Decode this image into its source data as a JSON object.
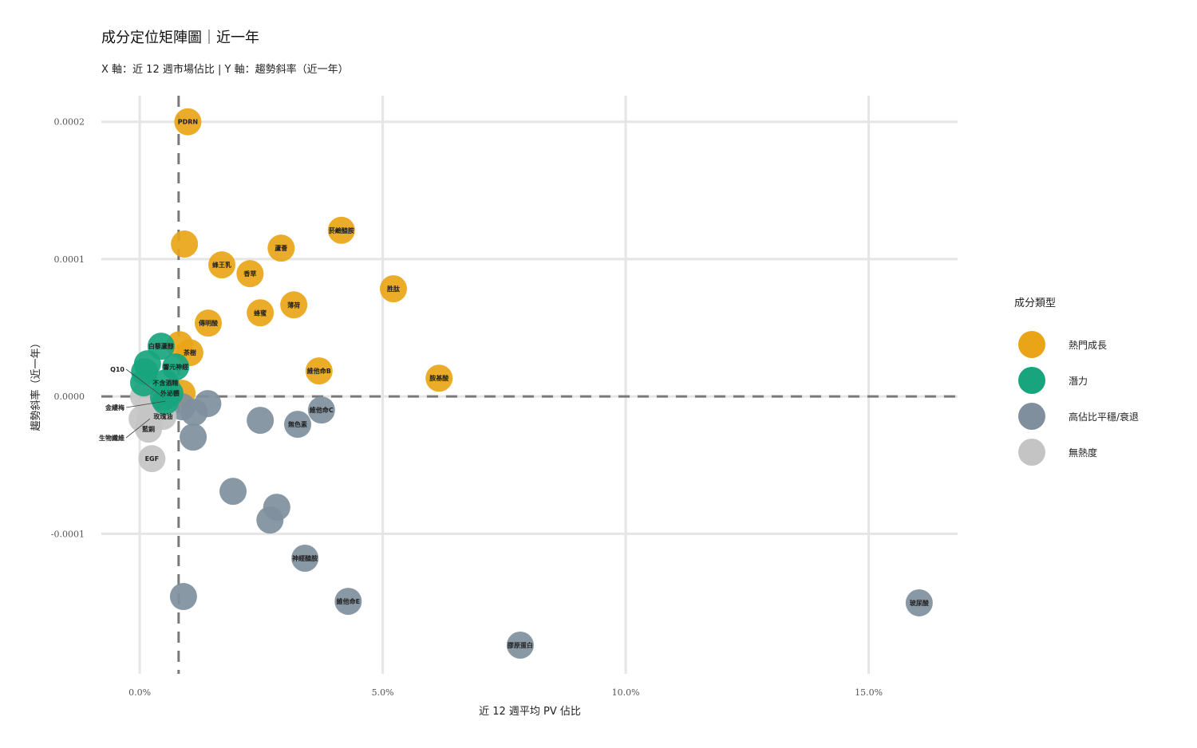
{
  "title": "成分定位矩陣圖｜近一年",
  "subtitle": "X 軸：近 12 週市場佔比 | Y 軸：趨勢斜率（近一年）",
  "chart_data": {
    "type": "scatter",
    "title": "成分定位矩陣圖｜近一年",
    "xlabel": "近 12 週平均 PV 佔比",
    "ylabel": "趨勢斜率（近一年）",
    "xlim": [
      -0.79,
      16.83
    ],
    "ylim": [
      -0.000202,
      0.000219
    ],
    "x_ticks": [
      {
        "v": 0,
        "label": "0.0%"
      },
      {
        "v": 5,
        "label": "5.0%"
      },
      {
        "v": 10,
        "label": "10.0%"
      },
      {
        "v": 15,
        "label": "15.0%"
      }
    ],
    "y_ticks": [
      {
        "v": 0.0002,
        "label": "0.0002"
      },
      {
        "v": 0.0001,
        "label": "0.0001"
      },
      {
        "v": 0,
        "label": "0.0000"
      },
      {
        "v": -0.0001,
        "label": "-0.0001"
      }
    ],
    "reference_lines": {
      "x": 0.8,
      "y": 0
    },
    "grid": true,
    "legend": {
      "title": "成分類型",
      "placement": "right",
      "entries": [
        {
          "key": "hot",
          "label": "熱門成長",
          "color": "#E9A517"
        },
        {
          "key": "potential",
          "label": "潛力",
          "color": "#18A57E"
        },
        {
          "key": "decline",
          "label": "高佔比平穩/衰退",
          "color": "#7F8F9D"
        },
        {
          "key": "none",
          "label": "無熱度",
          "color": "#C4C4C4"
        }
      ]
    },
    "points": [
      {
        "label": "PDRN",
        "x": 0.99,
        "y": 0.0002,
        "type": "hot"
      },
      {
        "label": "",
        "x": 0.92,
        "y": 0.000111,
        "type": "hot"
      },
      {
        "label": "菸鹼醯胺",
        "x": 4.15,
        "y": 0.000121,
        "type": "hot"
      },
      {
        "label": "蘆薈",
        "x": 2.91,
        "y": 0.000108,
        "type": "hot"
      },
      {
        "label": "蜂王乳",
        "x": 1.69,
        "y": 9.58e-05,
        "type": "hot"
      },
      {
        "label": "香草",
        "x": 2.27,
        "y": 8.94e-05,
        "type": "hot"
      },
      {
        "label": "胜肽",
        "x": 5.22,
        "y": 7.84e-05,
        "type": "hot"
      },
      {
        "label": "薄荷",
        "x": 3.17,
        "y": 6.67e-05,
        "type": "hot"
      },
      {
        "label": "蜂蜜",
        "x": 2.48,
        "y": 6.09e-05,
        "type": "hot"
      },
      {
        "label": "傳明酸",
        "x": 1.41,
        "y": 5.34e-05,
        "type": "hot"
      },
      {
        "label": "",
        "x": 0.82,
        "y": 3.77e-05,
        "type": "hot"
      },
      {
        "label": "茶樹",
        "x": 1.03,
        "y": 3.19e-05,
        "type": "hot"
      },
      {
        "label": "維他命B",
        "x": 3.69,
        "y": 1.86e-05,
        "type": "hot"
      },
      {
        "label": "胺基酸",
        "x": 6.16,
        "y": 1.33e-05,
        "type": "hot"
      },
      {
        "label": "",
        "x": 0.87,
        "y": 2.3e-06,
        "type": "hot"
      },
      {
        "label": "",
        "x": 1.4,
        "y": -5.2e-06,
        "type": "decline"
      },
      {
        "label": "",
        "x": 1.12,
        "y": -1.16e-05,
        "type": "decline"
      },
      {
        "label": "",
        "x": 0.87,
        "y": -7.5e-06,
        "type": "decline"
      },
      {
        "label": "",
        "x": 1.1,
        "y": -2.96e-05,
        "type": "decline"
      },
      {
        "label": "",
        "x": 2.48,
        "y": -1.74e-05,
        "type": "decline"
      },
      {
        "label": "無色素",
        "x": 3.25,
        "y": -2.03e-05,
        "type": "decline"
      },
      {
        "label": "維他命C",
        "x": 3.74,
        "y": -9.9e-06,
        "type": "decline"
      },
      {
        "label": "",
        "x": 1.92,
        "y": -6.91e-05,
        "type": "decline"
      },
      {
        "label": "",
        "x": 2.82,
        "y": -8.07e-05,
        "type": "decline"
      },
      {
        "label": "",
        "x": 2.68,
        "y": -9e-05,
        "type": "decline"
      },
      {
        "label": "神經醯胺",
        "x": 3.4,
        "y": -0.0001178,
        "type": "decline"
      },
      {
        "label": "",
        "x": 0.9,
        "y": -0.0001457,
        "type": "decline"
      },
      {
        "label": "維他命E",
        "x": 4.29,
        "y": -0.0001492,
        "type": "decline"
      },
      {
        "label": "膠原蛋白",
        "x": 7.83,
        "y": -0.0001811,
        "type": "decline"
      },
      {
        "label": "玻尿酸",
        "x": 16.04,
        "y": -0.0001503,
        "type": "decline"
      },
      {
        "label": "",
        "x": 0.08,
        "y": 0.0,
        "type": "none"
      },
      {
        "label": "",
        "x": 0.05,
        "y": -1.63e-05,
        "type": "none"
      },
      {
        "label": "生物纖維",
        "x": 0.21,
        "y": -1.63e-05,
        "type": "none"
      },
      {
        "label": "玫瑰油",
        "x": 0.48,
        "y": -1.45e-05,
        "type": "none"
      },
      {
        "label": "藍銅",
        "x": 0.18,
        "y": -2.38e-05,
        "type": "none"
      },
      {
        "label": "EGF",
        "x": 0.25,
        "y": -4.53e-05,
        "type": "none"
      },
      {
        "label": "白藜蘆醇",
        "x": 0.44,
        "y": 3.66e-05,
        "type": "potential"
      },
      {
        "label": "",
        "x": 0.16,
        "y": 2.38e-05,
        "type": "potential"
      },
      {
        "label": "",
        "x": 0.1,
        "y": 1.8e-05,
        "type": "potential"
      },
      {
        "label": "響元神經",
        "x": 0.74,
        "y": 2.15e-05,
        "type": "potential"
      },
      {
        "label": "",
        "x": 0.08,
        "y": 9.9e-06,
        "type": "potential"
      },
      {
        "label": "不含酒精",
        "x": 0.53,
        "y": 9.9e-06,
        "type": "potential"
      },
      {
        "label": "外泌體",
        "x": 0.62,
        "y": 2.3e-06,
        "type": "potential"
      },
      {
        "label": "Q10",
        "x": 0.49,
        "y": -6e-07,
        "type": "potential"
      },
      {
        "label": "金縷梅",
        "x": 0.53,
        "y": -3.5e-06,
        "type": "potential"
      }
    ]
  }
}
